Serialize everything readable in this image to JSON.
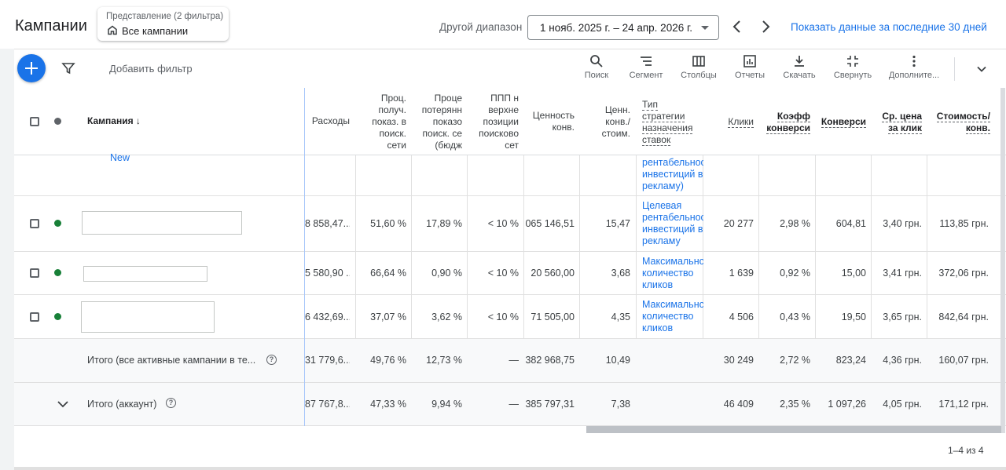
{
  "header": {
    "title": "Кампании",
    "view_label": "Представление (2 фильтра)",
    "view_value": "Все кампании",
    "range_label": "Другой диапазон",
    "date_range": "1 нояб. 2025 г. – 24 апр. 2026 г.",
    "last30_link": "Показать данные за последние 30 дней"
  },
  "toolbar": {
    "add_filter": "Добавить фильтр",
    "tools": [
      "Поиск",
      "Сегмент",
      "Столбцы",
      "Отчеты",
      "Скачать",
      "Свернуть",
      "Дополните..."
    ]
  },
  "columns": {
    "campaign": "Кампания",
    "cost": "Расходы",
    "impr_share": "Проц. получ. показ. в поиск. сети",
    "lost_budget": "Проце потерянн показо поиск. се (бюдж",
    "top_share": "ППП н верхне позиции поисково сет",
    "conv_value": "Ценность конв.",
    "value_per_cost": "Ценн. конв./ стоим.",
    "strategy": "Тип стратегии назначения ставок",
    "clicks": "Клики",
    "conv_rate": "Коэфф конверси",
    "conversions": "Конверси",
    "avg_cpc": "Ср. цена за клик",
    "cost_per_conv": "Стоимость/ конв."
  },
  "rows": [
    {
      "partial_link": "New",
      "strategy": "рентабельнос инвестиций в рекламу)"
    },
    {
      "cost": "8 858,47...",
      "impr_share": "51,60 %",
      "lost_budget": "17,89 %",
      "top_share": "< 10 %",
      "conv_value": "065 146,51",
      "value_per_cost": "15,47",
      "strategy": "Целевая рентабельнос инвестиций в рекламу",
      "clicks": "20 277",
      "conv_rate": "2,98 %",
      "conversions": "604,81",
      "avg_cpc": "3,40 грн.",
      "cost_per_conv": "113,85 грн.",
      "status_color": "#188038"
    },
    {
      "cost": "5 580,90 ...",
      "impr_share": "66,64 %",
      "lost_budget": "0,90 %",
      "top_share": "< 10 %",
      "conv_value": "20 560,00",
      "value_per_cost": "3,68",
      "strategy": "Максимальнс количество кликов",
      "clicks": "1 639",
      "conv_rate": "0,92 %",
      "conversions": "15,00",
      "avg_cpc": "3,41 грн.",
      "cost_per_conv": "372,06 грн.",
      "status_color": "#188038"
    },
    {
      "cost": "6 432,69...",
      "impr_share": "37,07 %",
      "lost_budget": "3,62 %",
      "top_share": "< 10 %",
      "conv_value": "71 505,00",
      "value_per_cost": "4,35",
      "strategy": "Максимальнс количество кликов",
      "clicks": "4 506",
      "conv_rate": "0,43 %",
      "conversions": "19,50",
      "avg_cpc": "3,65 грн.",
      "cost_per_conv": "842,64 грн.",
      "status_color": "#188038"
    }
  ],
  "totals": [
    {
      "label": "Итого (все активные кампании в те...",
      "cost": "31 779,6...",
      "impr_share": "49,76 %",
      "lost_budget": "12,73 %",
      "top_share": "—",
      "conv_value": "382 968,75",
      "value_per_cost": "10,49",
      "clicks": "30 249",
      "conv_rate": "2,72 %",
      "conversions": "823,24",
      "avg_cpc": "4,36 грн.",
      "cost_per_conv": "160,07 грн."
    },
    {
      "label": "Итого (аккаунт)",
      "cost": "87 767,8...",
      "impr_share": "47,33 %",
      "lost_budget": "9,94 %",
      "top_share": "—",
      "conv_value": "385 797,31",
      "value_per_cost": "7,38",
      "clicks": "46 409",
      "conv_rate": "2,35 %",
      "conversions": "1 097,26",
      "avg_cpc": "4,05 грн.",
      "cost_per_conv": "171,12 грн."
    }
  ],
  "pagination": "1–4 из 4"
}
